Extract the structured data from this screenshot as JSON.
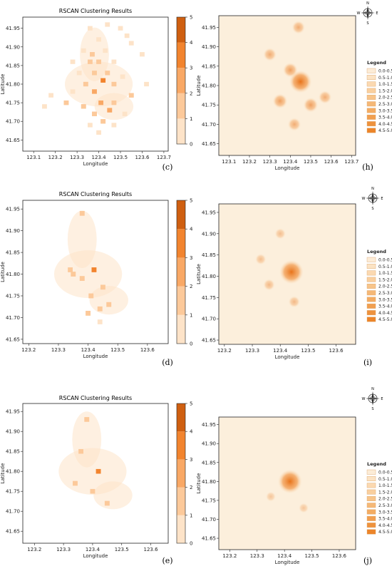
{
  "chart_data": [
    {
      "type": "heatmap",
      "panel": "c",
      "caption": "(c)",
      "title": "RSCAN Clustering Results",
      "xlabel": "Longitude",
      "ylabel": "Latitude",
      "xlim": [
        123.05,
        123.72
      ],
      "ylim": [
        41.62,
        41.98
      ],
      "xticks": [
        "123.1",
        "123.2",
        "123.3",
        "123.4",
        "123.5",
        "123.6",
        "123.7"
      ],
      "yticks": [
        "41.65",
        "41.70",
        "41.75",
        "41.80",
        "41.85",
        "41.90",
        "41.95"
      ],
      "colorbar": {
        "range": [
          0,
          5
        ],
        "ticks": [
          "0",
          "1",
          "2",
          "3",
          "4",
          "5"
        ],
        "colors": [
          "#fde3c8",
          "#fcc99a",
          "#f9a865",
          "#f2842e",
          "#cf5f10"
        ]
      },
      "cells": [
        [
          123.44,
          41.96,
          1
        ],
        [
          123.36,
          41.95,
          1
        ],
        [
          123.5,
          41.95,
          1
        ],
        [
          123.53,
          41.93,
          1
        ],
        [
          123.4,
          41.92,
          1
        ],
        [
          123.55,
          41.91,
          1
        ],
        [
          123.33,
          41.89,
          1
        ],
        [
          123.37,
          41.88,
          2
        ],
        [
          123.43,
          41.89,
          1
        ],
        [
          123.28,
          41.86,
          1
        ],
        [
          123.36,
          41.86,
          2
        ],
        [
          123.4,
          41.86,
          2
        ],
        [
          123.47,
          41.86,
          1
        ],
        [
          123.31,
          41.83,
          1
        ],
        [
          123.38,
          41.83,
          2
        ],
        [
          123.44,
          41.83,
          2
        ],
        [
          123.51,
          41.82,
          1
        ],
        [
          123.42,
          41.81,
          4
        ],
        [
          123.34,
          41.8,
          2
        ],
        [
          123.47,
          41.8,
          2
        ],
        [
          123.38,
          41.78,
          3
        ],
        [
          123.28,
          41.78,
          1
        ],
        [
          123.55,
          41.77,
          2
        ],
        [
          123.25,
          41.75,
          2
        ],
        [
          123.41,
          41.75,
          3
        ],
        [
          123.47,
          41.75,
          2
        ],
        [
          123.33,
          41.74,
          2
        ],
        [
          123.45,
          41.73,
          3
        ],
        [
          123.38,
          41.72,
          2
        ],
        [
          123.52,
          41.72,
          1
        ],
        [
          123.42,
          41.7,
          2
        ],
        [
          123.47,
          41.69,
          1
        ],
        [
          123.36,
          41.69,
          1
        ],
        [
          123.4,
          41.67,
          1
        ],
        [
          123.18,
          41.77,
          1
        ],
        [
          123.15,
          41.74,
          1
        ],
        [
          123.62,
          41.8,
          1
        ],
        [
          123.6,
          41.88,
          1
        ]
      ]
    },
    {
      "type": "heatmap",
      "panel": "h",
      "caption": "(h)",
      "xlabel": "Longitude",
      "ylabel": "Latitude",
      "xlim": [
        123.05,
        123.72
      ],
      "ylim": [
        41.62,
        41.98
      ],
      "xticks": [
        "123.1",
        "123.2",
        "123.3",
        "123.4",
        "123.5",
        "123.6",
        "123.7"
      ],
      "yticks": [
        "41.65",
        "41.70",
        "41.75",
        "41.80",
        "41.85",
        "41.90",
        "41.95"
      ],
      "legend_title": "Legend",
      "legend": [
        "0.0-0.5",
        "0.5-1.0",
        "1.0-1.5",
        "1.5-2.0",
        "2.0-2.5",
        "2.5-3.0",
        "3.0-3.5",
        "3.5-4.0",
        "4.0-4.5",
        "4.5-5.0"
      ],
      "compass": [
        "N",
        "E",
        "S",
        "W"
      ],
      "hotspots": [
        [
          123.45,
          41.81,
          4.5
        ],
        [
          123.4,
          41.84,
          2.0
        ],
        [
          123.35,
          41.76,
          2.0
        ],
        [
          123.5,
          41.75,
          2.0
        ],
        [
          123.44,
          41.95,
          1.5
        ],
        [
          123.3,
          41.88,
          1.5
        ],
        [
          123.57,
          41.77,
          1.5
        ],
        [
          123.42,
          41.7,
          1.5
        ]
      ]
    },
    {
      "type": "heatmap",
      "panel": "d",
      "caption": "(d)",
      "title": "RSCAN Clustering Results",
      "xlabel": "Longitude",
      "ylabel": "Latitude",
      "xlim": [
        123.18,
        123.67
      ],
      "ylim": [
        41.64,
        41.97
      ],
      "xticks": [
        "123.2",
        "123.3",
        "123.4",
        "123.5",
        "123.6"
      ],
      "yticks": [
        "41.65",
        "41.70",
        "41.75",
        "41.80",
        "41.85",
        "41.90",
        "41.95"
      ],
      "colorbar": {
        "range": [
          0,
          5
        ],
        "ticks": [
          "0",
          "1",
          "2",
          "3",
          "4",
          "5"
        ],
        "colors": [
          "#fde3c8",
          "#fcc99a",
          "#f9a865",
          "#f2842e",
          "#cf5f10"
        ]
      },
      "cells": [
        [
          123.42,
          41.81,
          4
        ],
        [
          123.34,
          41.81,
          2
        ],
        [
          123.38,
          41.79,
          2
        ],
        [
          123.41,
          41.75,
          2
        ],
        [
          123.44,
          41.72,
          2
        ],
        [
          123.4,
          41.71,
          2
        ],
        [
          123.47,
          41.73,
          2
        ],
        [
          123.38,
          41.94,
          2
        ],
        [
          123.35,
          41.8,
          2
        ],
        [
          123.45,
          41.77,
          2
        ],
        [
          123.44,
          41.69,
          1
        ]
      ]
    },
    {
      "type": "heatmap",
      "panel": "i",
      "caption": "(i)",
      "xlabel": "Longitude",
      "ylabel": "Latitude",
      "xlim": [
        123.18,
        123.67
      ],
      "ylim": [
        41.64,
        41.97
      ],
      "xticks": [
        "123.2",
        "123.3",
        "123.4",
        "123.5",
        "123.6"
      ],
      "yticks": [
        "41.65",
        "41.70",
        "41.75",
        "41.80",
        "41.85",
        "41.90",
        "41.95"
      ],
      "legend_title": "Legend",
      "legend": [
        "0.0-0.5",
        "0.5-1.0",
        "1.0-1.5",
        "1.5-2.0",
        "2.0-2.5",
        "2.5-3.0",
        "3.0-3.5",
        "3.5-4.0",
        "4.0-4.5",
        "4.5-5.0"
      ],
      "compass": [
        "N",
        "E",
        "S",
        "W"
      ],
      "hotspots": [
        [
          123.44,
          41.81,
          5.0
        ],
        [
          123.36,
          41.78,
          1.0
        ],
        [
          123.45,
          41.74,
          1.0
        ],
        [
          123.4,
          41.9,
          0.8
        ],
        [
          123.33,
          41.84,
          0.8
        ]
      ]
    },
    {
      "type": "heatmap",
      "panel": "e",
      "caption": "(e)",
      "title": "RSCAN Clustering Results",
      "xlabel": "Longitude",
      "ylabel": "Latitude",
      "xlim": [
        123.16,
        123.66
      ],
      "ylim": [
        41.62,
        41.97
      ],
      "xticks": [
        "123.2",
        "123.3",
        "123.4",
        "123.5",
        "123.6"
      ],
      "yticks": [
        "41.65",
        "41.70",
        "41.75",
        "41.80",
        "41.85",
        "41.90",
        "41.95"
      ],
      "colorbar": {
        "range": [
          0,
          5
        ],
        "ticks": [
          "0",
          "1",
          "2",
          "3",
          "4",
          "5"
        ],
        "colors": [
          "#fde3c8",
          "#fcc99a",
          "#f9a865",
          "#f2842e",
          "#cf5f10"
        ]
      },
      "cells": [
        [
          123.42,
          41.8,
          4
        ],
        [
          123.38,
          41.93,
          2
        ],
        [
          123.36,
          41.85,
          2
        ],
        [
          123.45,
          41.72,
          2
        ],
        [
          123.34,
          41.77,
          2
        ],
        [
          123.4,
          41.75,
          2
        ]
      ]
    },
    {
      "type": "heatmap",
      "panel": "j",
      "caption": "(j)",
      "xlabel": "Longitude",
      "ylabel": "Latitude",
      "xlim": [
        123.16,
        123.66
      ],
      "ylim": [
        41.62,
        41.97
      ],
      "xticks": [
        "123.2",
        "123.3",
        "123.4",
        "123.5",
        "123.6"
      ],
      "yticks": [
        "41.65",
        "41.70",
        "41.75",
        "41.80",
        "41.85",
        "41.90",
        "41.95"
      ],
      "legend_title": "Legend",
      "legend": [
        "0.0-0.5",
        "0.5-1.0",
        "1.0-1.5",
        "1.5-2.0",
        "2.0-2.5",
        "2.5-3.0",
        "3.0-3.5",
        "3.5-4.0",
        "4.0-4.5",
        "4.5-5.0"
      ],
      "compass": [
        "N",
        "E",
        "S",
        "W"
      ],
      "hotspots": [
        [
          123.42,
          41.8,
          5.0
        ],
        [
          123.35,
          41.76,
          0.5
        ],
        [
          123.47,
          41.73,
          0.5
        ]
      ]
    }
  ]
}
